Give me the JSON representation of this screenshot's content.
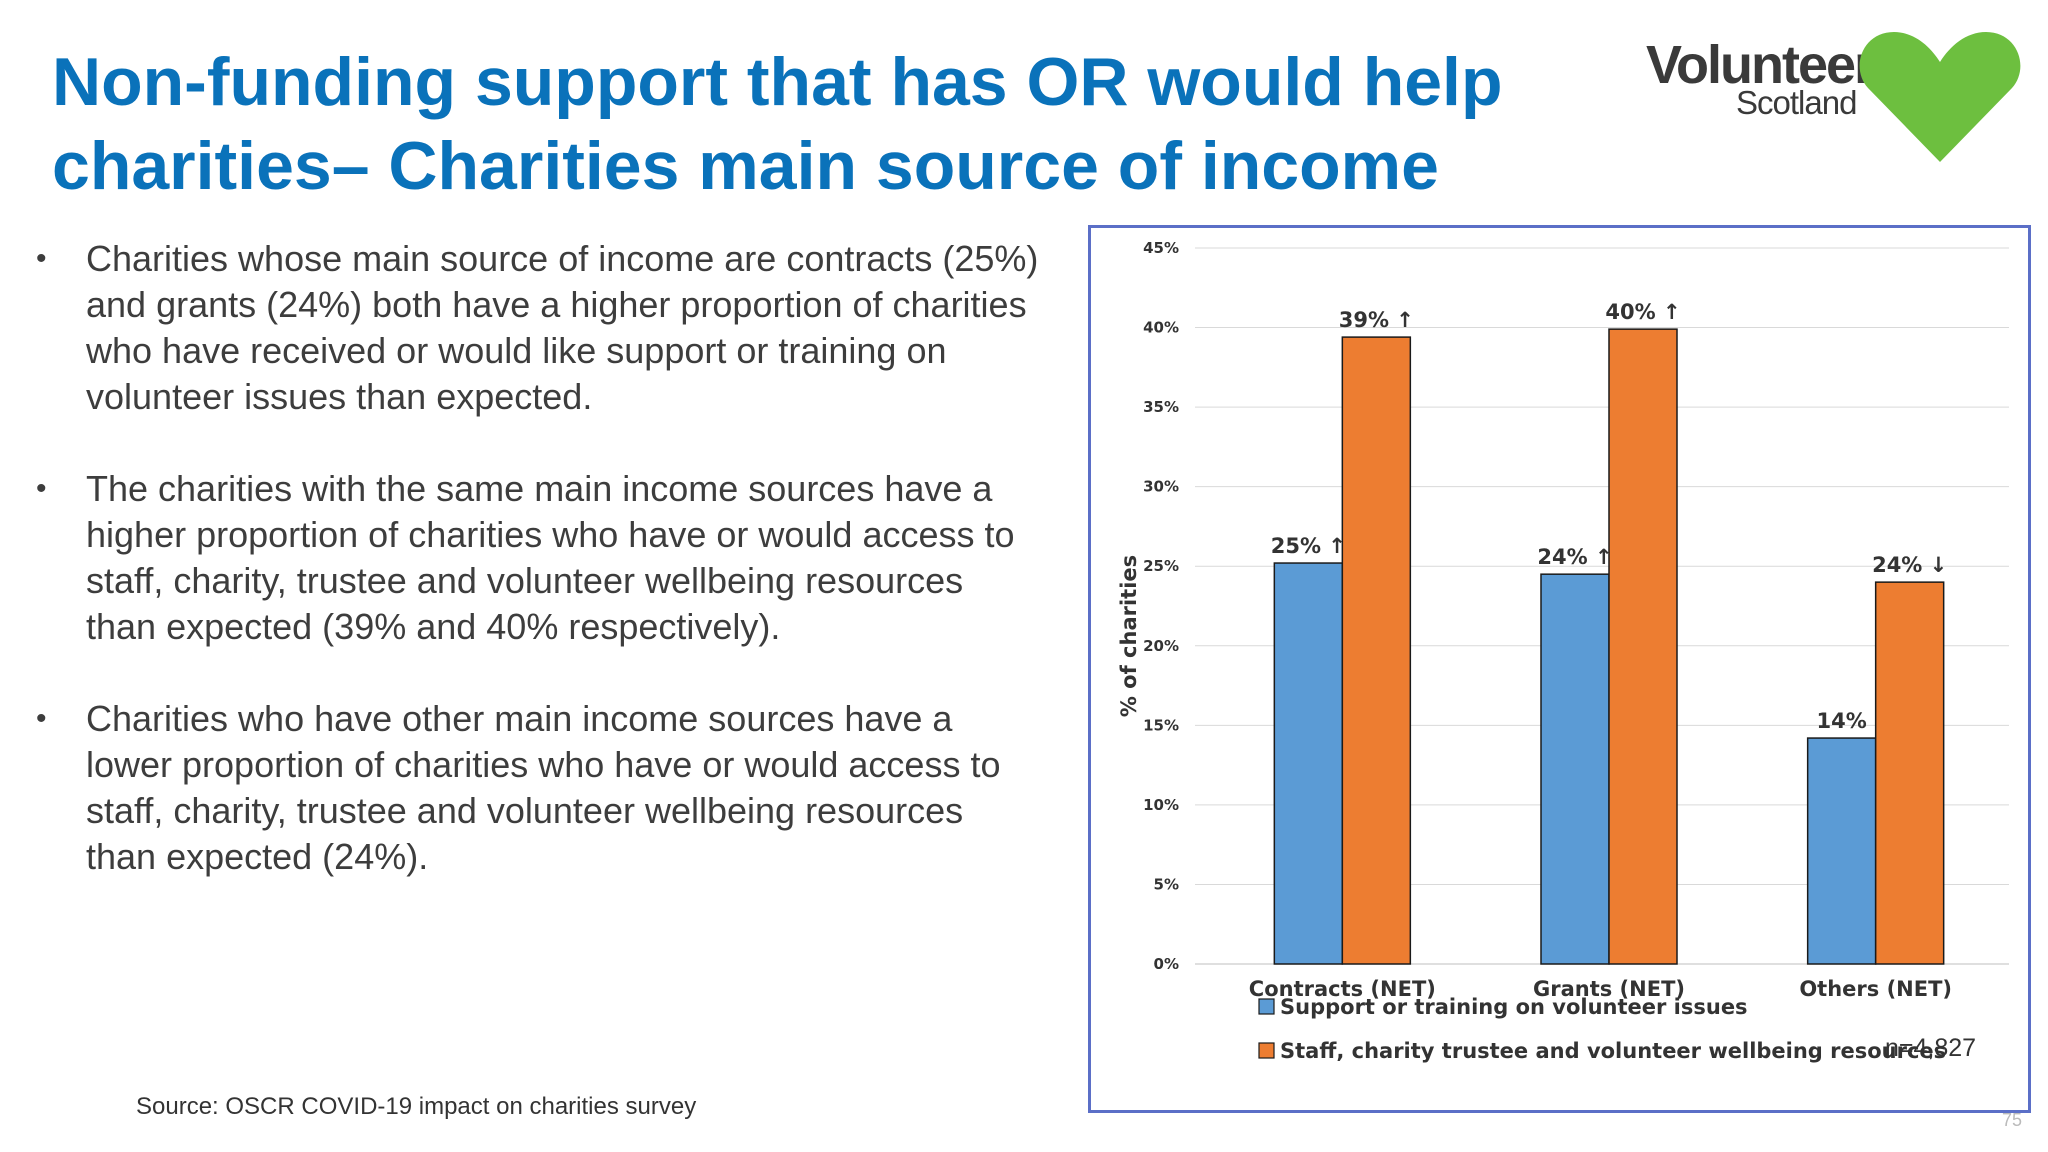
{
  "slide": {
    "title": "Non-funding support that has OR would help charities– Charities main source of income",
    "bullet_symbol": "•",
    "bullets": [
      "Charities whose main source of income are contracts (25%) and grants (24%) both have a higher proportion of charities who have received or would like support or training on volunteer issues than expected.",
      "The charities with the same main income sources have a higher proportion of charities who have or would access to staff, charity, trustee and volunteer wellbeing resources than expected (39% and 40% respectively).",
      "Charities who have other main income sources have a lower proportion of charities who have or would access to staff, charity, trustee and volunteer wellbeing resources than expected (24%)."
    ],
    "source": "Source: OSCR COVID-19 impact on charities survey",
    "page_number": "75",
    "sample_size": "n=4,827"
  },
  "logo": {
    "word1": "Volunteer",
    "word2": "Scotland",
    "heart_color": "#6dbf3f",
    "text_color": "#3a3a3a"
  },
  "chart_data": {
    "type": "bar",
    "title": "",
    "xlabel": "",
    "ylabel": "% of charities",
    "ylim": [
      0,
      45
    ],
    "yticks": [
      0,
      5,
      10,
      15,
      20,
      25,
      30,
      35,
      40,
      45
    ],
    "ytick_labels": [
      "0%",
      "5%",
      "10%",
      "15%",
      "20%",
      "25%",
      "30%",
      "35%",
      "40%",
      "45%"
    ],
    "grid": true,
    "legend_position": "bottom",
    "categories": [
      "Contracts (NET)",
      "Grants (NET)",
      "Others (NET)"
    ],
    "series": [
      {
        "name": "Support or training on volunteer issues",
        "color": "#5b9bd5",
        "values": [
          25.2,
          24.5,
          14.2
        ],
        "labels": [
          "25%",
          "24%",
          "14%"
        ],
        "significance": [
          "↑",
          "↑",
          ""
        ]
      },
      {
        "name": "Staff, charity trustee and volunteer wellbeing resources",
        "color": "#ed7d31",
        "values": [
          39.4,
          39.9,
          24.0
        ],
        "labels": [
          "39%",
          "40%",
          "24%"
        ],
        "significance": [
          "↑",
          "↑",
          "↓"
        ]
      }
    ]
  }
}
